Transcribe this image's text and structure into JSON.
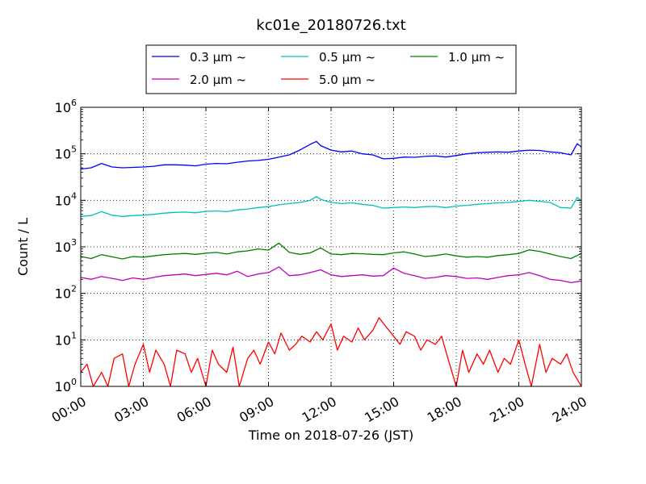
{
  "chart_data": {
    "type": "line",
    "title": "kc01e_20180726.txt",
    "xlabel": "Time on 2018-07-26 (JST)",
    "ylabel": "Count / L",
    "yscale": "log",
    "ylim": [
      1,
      1000000
    ],
    "xlim": [
      0,
      24
    ],
    "xtick_labels": [
      "00:00",
      "03:00",
      "06:00",
      "09:00",
      "12:00",
      "15:00",
      "18:00",
      "21:00",
      "24:00"
    ],
    "ytick_exponents": [
      "0",
      "1",
      "2",
      "3",
      "4",
      "5",
      "6"
    ],
    "ytick_base": "10",
    "grid": true,
    "legend_position": "top-center (above axes)",
    "series": [
      {
        "name": "0.3 μm ~",
        "label_size": "0.3",
        "color": "#0000ff",
        "x": [
          0,
          0.5,
          1,
          1.5,
          2,
          2.5,
          3,
          3.5,
          4,
          4.5,
          5,
          5.5,
          6,
          6.5,
          7,
          7.5,
          8,
          8.5,
          9,
          9.5,
          10,
          10.5,
          11,
          11.3,
          11.5,
          12,
          12.5,
          13,
          13.5,
          14,
          14.5,
          15,
          15.5,
          16,
          16.5,
          17,
          17.5,
          18,
          18.5,
          19,
          19.5,
          20,
          20.5,
          21,
          21.5,
          22,
          22.5,
          23,
          23.5,
          23.8,
          24
        ],
        "values": [
          47000,
          50000,
          62000,
          52000,
          50000,
          51000,
          52000,
          54000,
          58000,
          58000,
          57000,
          55000,
          60000,
          62000,
          61000,
          66000,
          70000,
          72000,
          76000,
          85000,
          95000,
          120000,
          160000,
          185000,
          150000,
          120000,
          110000,
          115000,
          100000,
          95000,
          78000,
          80000,
          85000,
          84000,
          88000,
          90000,
          85000,
          92000,
          100000,
          105000,
          108000,
          110000,
          108000,
          115000,
          120000,
          118000,
          110000,
          105000,
          95000,
          165000,
          140000
        ]
      },
      {
        "name": "0.5 μm ~",
        "label_size": "0.5",
        "color": "#00bfbf",
        "x": [
          0,
          0.5,
          1,
          1.5,
          2,
          2.5,
          3,
          3.5,
          4,
          4.5,
          5,
          5.5,
          6,
          6.5,
          7,
          7.5,
          8,
          8.5,
          9,
          9.5,
          10,
          10.5,
          11,
          11.3,
          11.5,
          12,
          12.5,
          13,
          13.5,
          14,
          14.5,
          15,
          15.5,
          16,
          16.5,
          17,
          17.5,
          18,
          18.5,
          19,
          19.5,
          20,
          20.5,
          21,
          21.5,
          22,
          22.5,
          23,
          23.5,
          23.8,
          24
        ],
        "values": [
          4500,
          4700,
          5700,
          4800,
          4500,
          4700,
          4800,
          5000,
          5300,
          5500,
          5600,
          5400,
          5800,
          5900,
          5700,
          6200,
          6500,
          7000,
          7300,
          8000,
          8500,
          9000,
          10000,
          12000,
          10500,
          9000,
          8500,
          8800,
          8200,
          7800,
          6800,
          7000,
          7200,
          7000,
          7300,
          7400,
          7000,
          7500,
          7800,
          8200,
          8500,
          8800,
          9000,
          9500,
          10000,
          9500,
          9000,
          7000,
          6800,
          11500,
          9800
        ]
      },
      {
        "name": "1.0 μm ~",
        "label_size": "1.0",
        "color": "#008000",
        "x": [
          0,
          0.5,
          1,
          1.5,
          2,
          2.5,
          3,
          3.5,
          4,
          4.5,
          5,
          5.5,
          6,
          6.5,
          7,
          7.5,
          8,
          8.5,
          9,
          9.5,
          10,
          10.5,
          11,
          11.5,
          12,
          12.5,
          13,
          13.5,
          14,
          14.5,
          15,
          15.5,
          16,
          16.5,
          17,
          17.5,
          18,
          18.5,
          19,
          19.5,
          20,
          20.5,
          21,
          21.5,
          22,
          22.5,
          23,
          23.5,
          24
        ],
        "values": [
          620,
          560,
          680,
          610,
          550,
          620,
          600,
          640,
          680,
          700,
          720,
          690,
          730,
          760,
          700,
          780,
          820,
          900,
          850,
          1200,
          760,
          690,
          740,
          950,
          700,
          680,
          720,
          710,
          690,
          680,
          740,
          780,
          700,
          620,
          650,
          700,
          640,
          600,
          620,
          600,
          650,
          680,
          720,
          860,
          800,
          700,
          620,
          560,
          720
        ]
      },
      {
        "name": "2.0 μm ~",
        "label_size": "2.0",
        "color": "#bf00bf",
        "x": [
          0,
          0.5,
          1,
          1.5,
          2,
          2.5,
          3,
          3.5,
          4,
          4.5,
          5,
          5.5,
          6,
          6.5,
          7,
          7.5,
          8,
          8.5,
          9,
          9.5,
          10,
          10.5,
          11,
          11.5,
          12,
          12.5,
          13,
          13.5,
          14,
          14.5,
          15,
          15.5,
          16,
          16.5,
          17,
          17.5,
          18,
          18.5,
          19,
          19.5,
          20,
          20.5,
          21,
          21.5,
          22,
          22.5,
          23,
          23.5,
          24
        ],
        "values": [
          220,
          200,
          230,
          210,
          190,
          215,
          200,
          220,
          240,
          250,
          260,
          240,
          255,
          270,
          250,
          300,
          230,
          260,
          280,
          370,
          240,
          250,
          280,
          320,
          250,
          230,
          240,
          250,
          235,
          240,
          350,
          270,
          240,
          210,
          220,
          240,
          230,
          210,
          215,
          200,
          220,
          240,
          250,
          280,
          240,
          200,
          190,
          170,
          185
        ]
      },
      {
        "name": "5.0 μm ~",
        "label_size": "5.0",
        "color": "#ff0000",
        "x": [
          0,
          0.3,
          0.6,
          1,
          1.3,
          1.6,
          2,
          2.3,
          2.6,
          3,
          3.3,
          3.6,
          4,
          4.3,
          4.6,
          5,
          5.3,
          5.6,
          6,
          6.3,
          6.6,
          7,
          7.3,
          7.6,
          8,
          8.3,
          8.6,
          9,
          9.3,
          9.6,
          10,
          10.3,
          10.6,
          11,
          11.3,
          11.6,
          12,
          12.3,
          12.6,
          13,
          13.3,
          13.6,
          14,
          14.3,
          14.6,
          15,
          15.3,
          15.6,
          16,
          16.3,
          16.6,
          17,
          17.3,
          17.6,
          18,
          18.3,
          18.6,
          19,
          19.3,
          19.6,
          20,
          20.3,
          20.6,
          21,
          21.3,
          21.6,
          22,
          22.3,
          22.6,
          23,
          23.3,
          23.6,
          24
        ],
        "values": [
          2,
          3,
          1,
          2,
          1,
          4,
          5,
          1,
          3,
          8,
          2,
          6,
          3,
          1,
          6,
          5,
          2,
          4,
          1,
          6,
          3,
          2,
          7,
          1,
          4,
          6,
          3,
          9,
          5,
          14,
          6,
          8,
          12,
          9,
          15,
          10,
          22,
          6,
          12,
          9,
          18,
          10,
          16,
          30,
          20,
          12,
          8,
          15,
          12,
          6,
          10,
          8,
          12,
          4,
          1,
          6,
          2,
          5,
          3,
          6,
          2,
          4,
          3,
          10,
          3,
          1,
          8,
          2,
          4,
          3,
          5,
          2,
          1
        ]
      }
    ]
  }
}
